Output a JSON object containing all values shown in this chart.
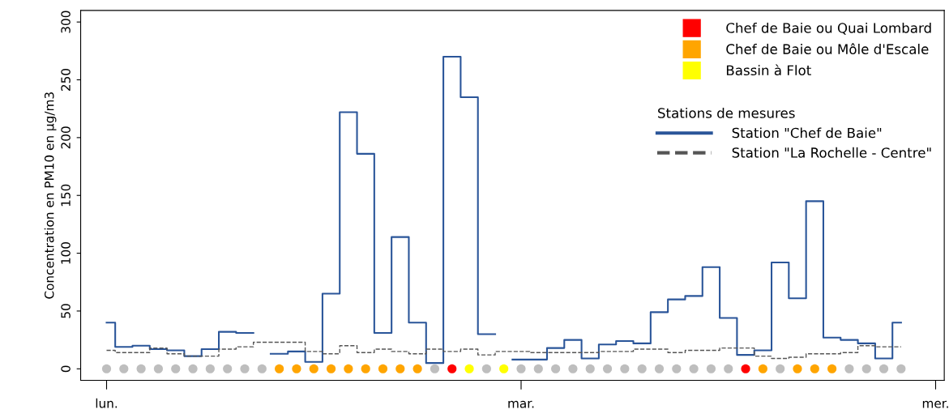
{
  "chart_data": {
    "type": "step",
    "ylabel": "Concentration en PM10 en µg/m3",
    "legend_title": "Stations de mesures",
    "categories": [
      "lun.",
      null,
      null,
      null,
      null,
      null,
      null,
      null,
      null,
      null,
      null,
      null,
      null,
      null,
      null,
      null,
      null,
      null,
      null,
      null,
      null,
      null,
      null,
      null,
      "mar.",
      null,
      null,
      null,
      null,
      null,
      null,
      null,
      null,
      null,
      null,
      null,
      null,
      null,
      null,
      null,
      null,
      null,
      null,
      null,
      null,
      null,
      null,
      null,
      "mer."
    ],
    "series": [
      {
        "name": "Station \"Chef de Baie\"",
        "color": "#2a5599",
        "line_style": "solid",
        "values": [
          40,
          19,
          20,
          17,
          16,
          11,
          17,
          32,
          31,
          null,
          13,
          15,
          6,
          65,
          222,
          186,
          31,
          114,
          40,
          5,
          270,
          235,
          30,
          null,
          8,
          8,
          18,
          25,
          9,
          21,
          24,
          22,
          49,
          60,
          63,
          88,
          44,
          12,
          16,
          92,
          61,
          145,
          27,
          25,
          22,
          9,
          40,
          null,
          null
        ]
      },
      {
        "name": "Station \"La Rochelle - Centre\"",
        "color": "#555555",
        "line_style": "dashed",
        "values": [
          16,
          14,
          14,
          18,
          13,
          11,
          11,
          17,
          19,
          23,
          23,
          23,
          15,
          13,
          20,
          14,
          17,
          15,
          13,
          17,
          15,
          17,
          12,
          15,
          15,
          14,
          14,
          14,
          14,
          15,
          15,
          17,
          17,
          14,
          16,
          16,
          18,
          18,
          11,
          9,
          10,
          13,
          13,
          14,
          20,
          19,
          19,
          null,
          null
        ]
      },
      {
        "type": "scatter",
        "marker": "circle",
        "color": "#bebebe",
        "values": [
          0,
          0,
          0,
          0,
          0,
          0,
          0,
          0,
          0,
          0,
          null,
          null,
          null,
          null,
          null,
          null,
          null,
          null,
          null,
          0,
          null,
          null,
          0,
          null,
          0,
          0,
          0,
          0,
          0,
          0,
          0,
          0,
          0,
          0,
          0,
          0,
          0,
          null,
          null,
          0,
          null,
          null,
          null,
          0,
          0,
          0,
          0,
          null,
          null
        ]
      },
      {
        "type": "scatter",
        "marker": "circle",
        "name": "Chef de Baie ou Quai Lombard",
        "color": "#ff0000",
        "values": [
          null,
          null,
          null,
          null,
          null,
          null,
          null,
          null,
          null,
          null,
          null,
          null,
          null,
          null,
          null,
          null,
          null,
          null,
          null,
          null,
          0,
          null,
          null,
          null,
          null,
          null,
          null,
          null,
          null,
          null,
          null,
          null,
          null,
          null,
          null,
          null,
          null,
          0,
          null,
          null,
          null,
          null,
          null,
          null,
          null,
          null,
          null,
          null,
          null
        ]
      },
      {
        "type": "scatter",
        "marker": "circle",
        "name": "Chef de Baie ou Môle d'Escale",
        "color": "#ffa500",
        "values": [
          null,
          null,
          null,
          null,
          null,
          null,
          null,
          null,
          null,
          null,
          0,
          0,
          0,
          0,
          0,
          0,
          0,
          0,
          0,
          null,
          null,
          null,
          null,
          null,
          null,
          null,
          null,
          null,
          null,
          null,
          null,
          null,
          null,
          null,
          null,
          null,
          null,
          null,
          0,
          null,
          0,
          0,
          0,
          null,
          null,
          null,
          null,
          null,
          null
        ]
      },
      {
        "type": "scatter",
        "marker": "circle",
        "name": "Bassin à Flot",
        "color": "#ffff00",
        "values": [
          null,
          null,
          null,
          null,
          null,
          null,
          null,
          null,
          null,
          null,
          null,
          null,
          null,
          null,
          null,
          null,
          null,
          null,
          null,
          null,
          null,
          0,
          null,
          0,
          null,
          null,
          null,
          null,
          null,
          null,
          null,
          null,
          null,
          null,
          null,
          null,
          null,
          null,
          null,
          null,
          null,
          null,
          null,
          null,
          null,
          null,
          null,
          null,
          null
        ]
      }
    ],
    "ylim": [
      -10,
      310
    ],
    "yticks": [
      0,
      50,
      100,
      150,
      200,
      250,
      300
    ],
    "grid": false,
    "legend": "top right"
  }
}
